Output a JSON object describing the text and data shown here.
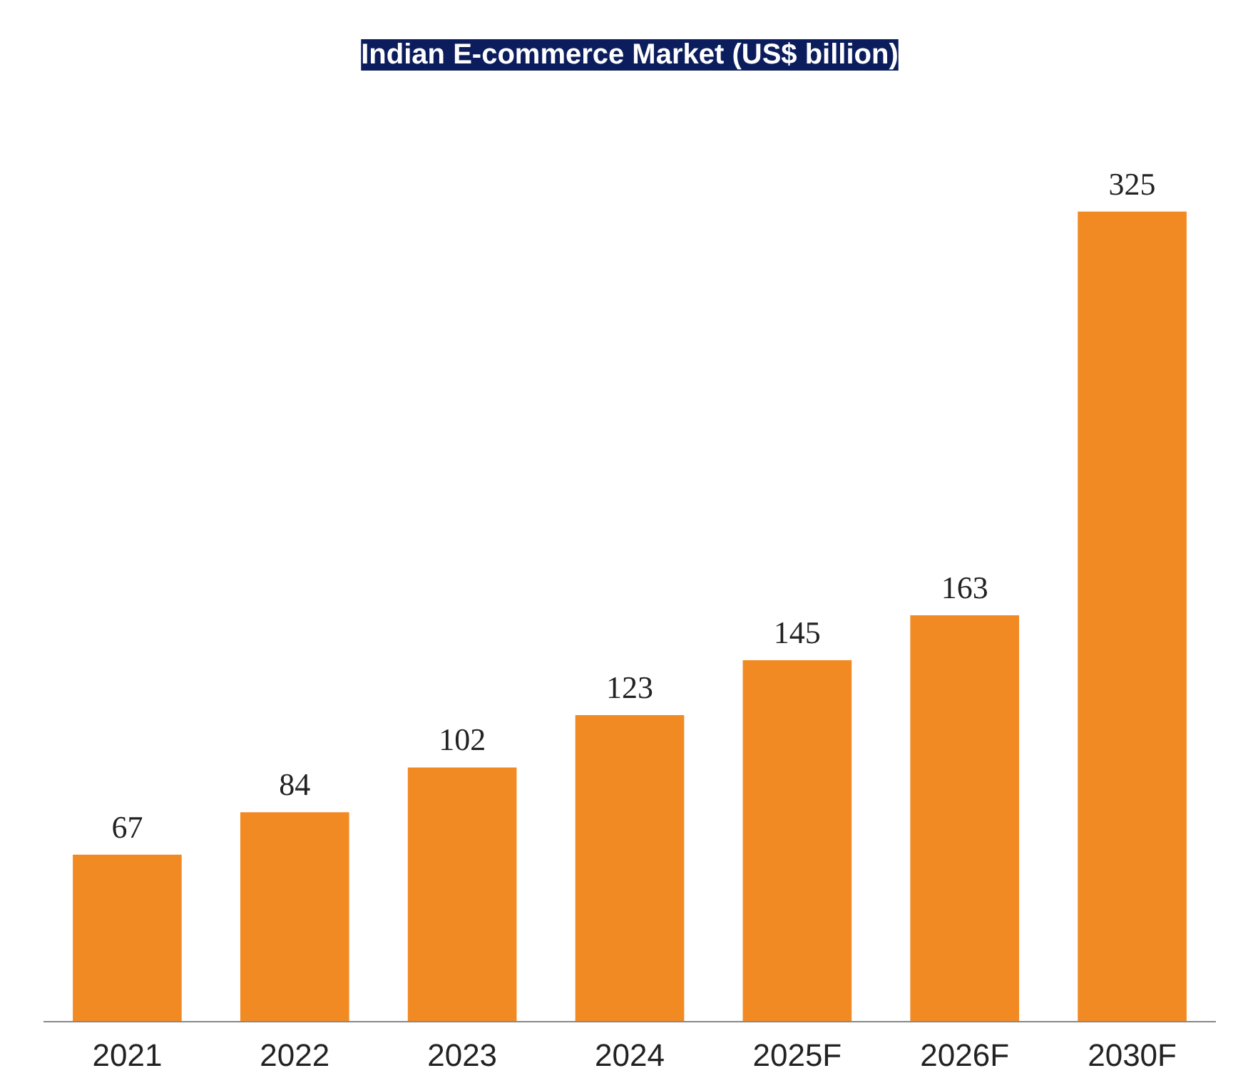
{
  "chart_data": {
    "type": "bar",
    "title": "Indian E-commerce Market (US$ billion)",
    "categories": [
      "2021",
      "2022",
      "2023",
      "2024",
      "2025F",
      "2026F",
      "2030F"
    ],
    "values": [
      67,
      84,
      102,
      123,
      145,
      163,
      325
    ],
    "color": "#f28a24",
    "data_labels": true,
    "tick_labels": "x"
  }
}
